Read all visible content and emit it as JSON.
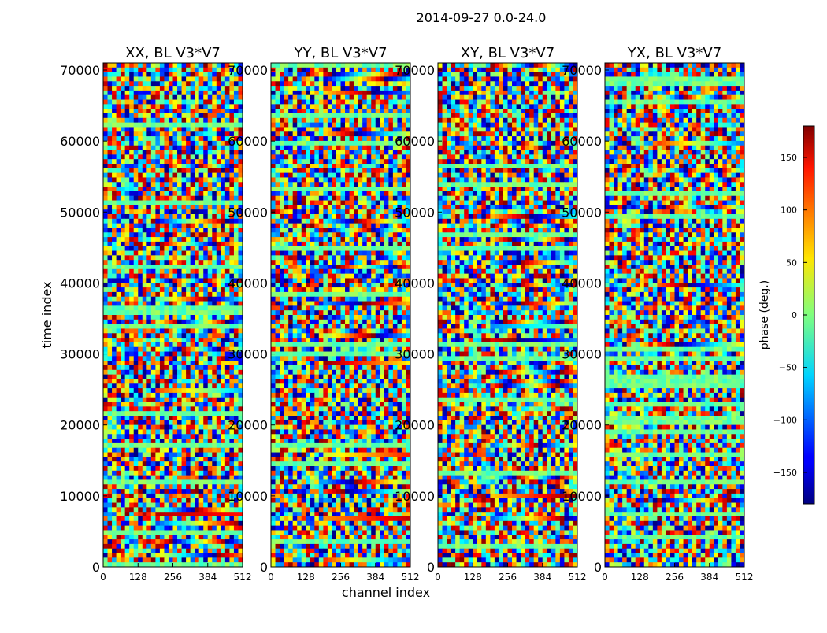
{
  "chart_data": {
    "type": "heatmap",
    "title": "2014-09-27 0.0-24.0",
    "xlabel": "channel index",
    "ylabel": "time index",
    "xlim": [
      0,
      512
    ],
    "ylim": [
      0,
      71000
    ],
    "x_ticks": [
      "0",
      "128",
      "256",
      "384",
      "512"
    ],
    "y_ticks": [
      "0",
      "10000",
      "20000",
      "30000",
      "40000",
      "50000",
      "60000",
      "70000"
    ],
    "panels": [
      {
        "title": "XX, BL V3*V7"
      },
      {
        "title": "YY, BL V3*V7"
      },
      {
        "title": "XY, BL V3*V7"
      },
      {
        "title": "YX, BL V3*V7"
      }
    ],
    "colorbar": {
      "label": "phase (deg.)",
      "range": [
        -180,
        180
      ],
      "ticks": [
        "150",
        "100",
        "50",
        "0",
        "−50",
        "−100",
        "−150"
      ],
      "tick_values": [
        150,
        100,
        50,
        0,
        -50,
        -100,
        -150
      ]
    }
  }
}
